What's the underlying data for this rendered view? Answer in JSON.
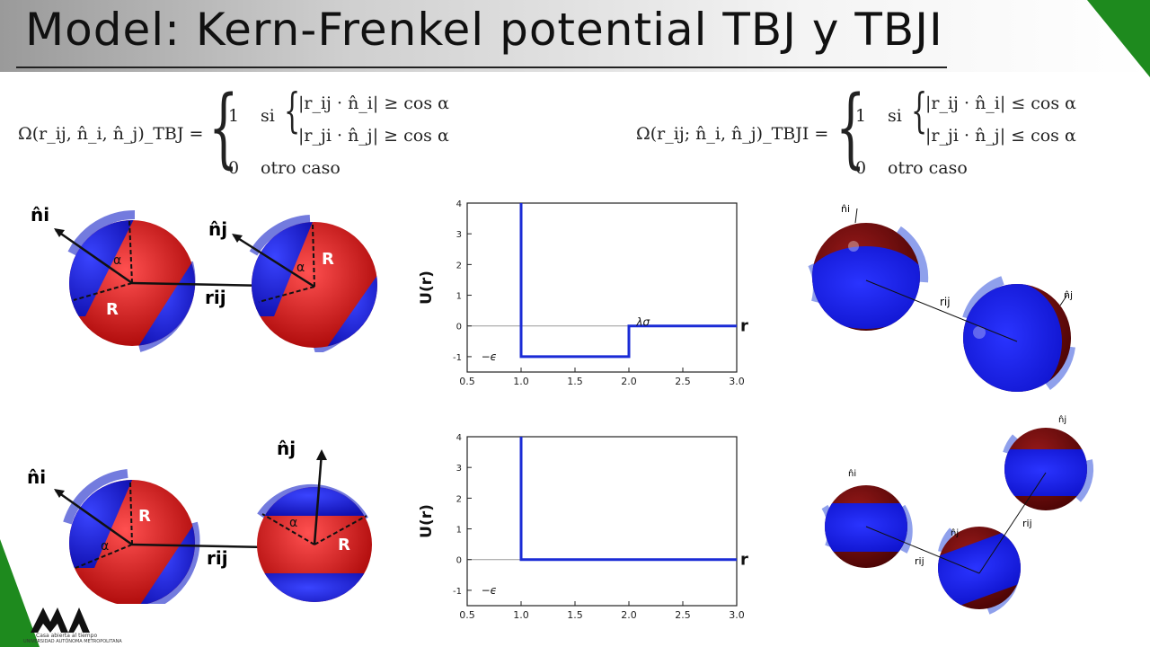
{
  "slide": {
    "title": "Model: Kern-Frenkel potential TBJ y TBJI"
  },
  "equations": {
    "tbj": {
      "lhs": "Ω(r_ij, n̂_i, n̂_j)_TBJ =",
      "case1_value": "1",
      "case1_word": "si",
      "cond1": "|r_ij · n̂_i| ≥ cos α",
      "cond2": "|r_ji · n̂_j| ≥ cos α",
      "case2_value": "0",
      "case2_word": "otro caso"
    },
    "tbji": {
      "lhs": "Ω(r_ij; n̂_i, n̂_j)_TBJI =",
      "case1_value": "1",
      "case1_word": "si",
      "cond1": "|r_ij · n̂_i| ≤ cos α",
      "cond2": "|r_ji · n̂_j| ≤ cos α",
      "case2_value": "0",
      "case2_word": "otro caso"
    }
  },
  "diagram_labels": {
    "ni": "n̂i",
    "nj": "n̂j",
    "rij": "rij",
    "R": "R",
    "alpha": "α"
  },
  "colors": {
    "red_patch": "#d01818",
    "blue_patch": "#1a22cc",
    "shell": "#5a64d8",
    "dark_red": "#6a0808",
    "plot_line": "#1a2bd6",
    "green_corner": "#1e8a1e"
  },
  "logo": {
    "caption1": "Casa abierta al tiempo",
    "caption2": "UNIVERSIDAD AUTÓNOMA METROPOLITANA"
  },
  "chart_data": [
    {
      "type": "line",
      "title": "",
      "xlabel": "r",
      "ylabel": "U(r)",
      "xlim": [
        0.5,
        3.0
      ],
      "ylim": [
        -1.5,
        4
      ],
      "xticks": [
        "0.5",
        "1.0",
        "1.5",
        "2.0",
        "2.5",
        "3.0"
      ],
      "yticks": [
        "-1",
        "0",
        "1",
        "2",
        "3",
        "4"
      ],
      "x": [
        1.0,
        1.0,
        2.0,
        2.0,
        3.0
      ],
      "y": [
        4,
        -1,
        -1,
        0,
        0
      ],
      "annotations": [
        {
          "text": "λσ",
          "x": 2.07,
          "y": 0.12
        },
        {
          "text": "−ϵ",
          "x": 0.63,
          "y": -1.0
        }
      ]
    },
    {
      "type": "line",
      "title": "",
      "xlabel": "r",
      "ylabel": "U(r)",
      "xlim": [
        0.5,
        3.0
      ],
      "ylim": [
        -1.5,
        4
      ],
      "xticks": [
        "0.5",
        "1.0",
        "1.5",
        "2.0",
        "2.5",
        "3.0"
      ],
      "yticks": [
        "-1",
        "0",
        "1",
        "2",
        "3",
        "4"
      ],
      "x": [
        1.0,
        1.0,
        3.0
      ],
      "y": [
        4,
        0,
        0
      ],
      "annotations": [
        {
          "text": "−ϵ",
          "x": 0.63,
          "y": -1.0
        }
      ]
    }
  ]
}
